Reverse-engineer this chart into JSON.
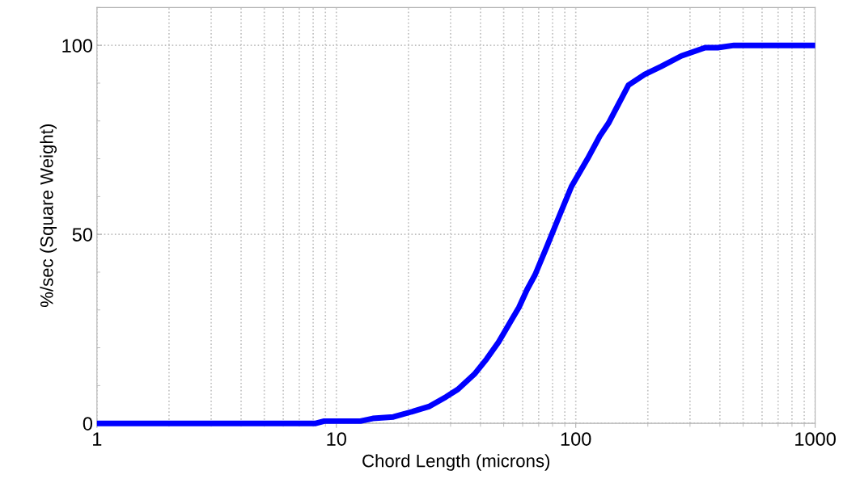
{
  "chart_data": {
    "type": "line",
    "xlabel": "Chord Length (microns)",
    "ylabel": "%/sec (Square Weight)",
    "log": "x",
    "xlim": [
      1,
      1000
    ],
    "xticks": [
      1,
      10,
      100,
      1000
    ],
    "ylim": [
      0,
      110
    ],
    "yticks": [
      0,
      50,
      100
    ],
    "grid": true,
    "marker": "none",
    "line_style": "solid",
    "x": [
      1,
      8.2,
      8.9,
      12.6,
      14.2,
      17.3,
      21,
      24.5,
      28.7,
      32.2,
      37.7,
      42.4,
      47.6,
      53.5,
      57.9,
      62.6,
      67.6,
      76,
      85.5,
      96,
      112,
      126,
      137,
      166,
      194,
      227,
      276,
      347,
      392,
      458,
      1000
    ],
    "series": [
      {
        "color": "#0000ff",
        "values": [
          0,
          0,
          0.6,
          0.6,
          1.3,
          1.7,
          3.2,
          4.5,
          7,
          9,
          13,
          17,
          21.5,
          27,
          30.7,
          35.4,
          39.3,
          47,
          55,
          62.7,
          70,
          76,
          79.4,
          89.5,
          92.3,
          94.4,
          97.2,
          99.4,
          99.4,
          100,
          100
        ]
      }
    ]
  }
}
